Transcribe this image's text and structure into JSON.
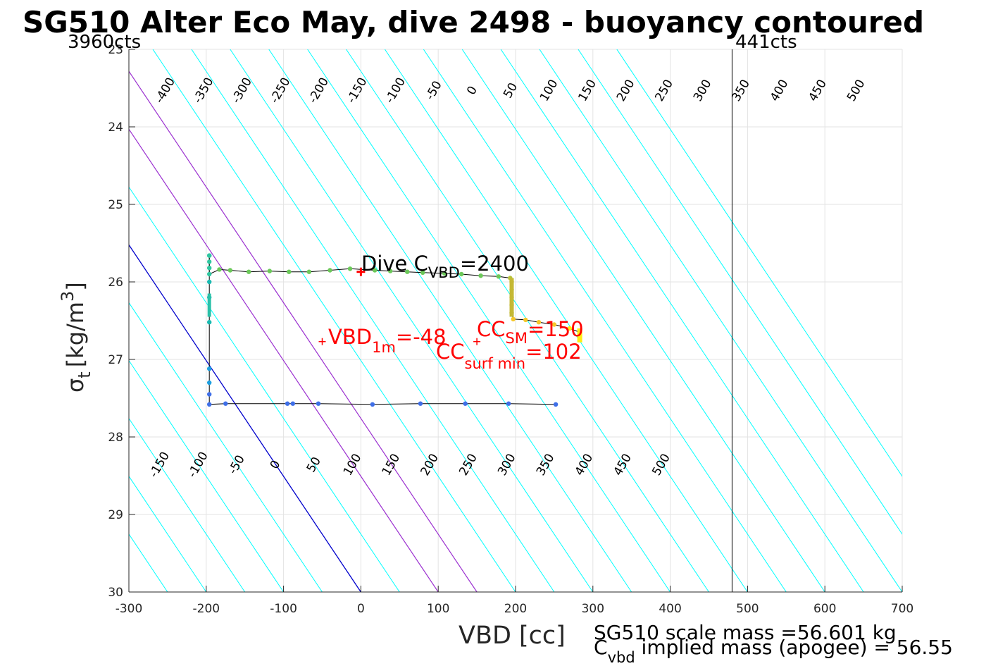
{
  "chart_data": {
    "type": "scatter",
    "title": "SG510 Alter Eco May, dive 2498 - buoyancy contoured",
    "xlabel": "VBD [cc]",
    "ylabel": "σ",
    "ylabel_sub": "t",
    "ylabel_unit": "[kg/m",
    "ylabel_sup": "3",
    "ylabel_close": "]",
    "xlim": [
      -300,
      700
    ],
    "ylim": [
      23,
      30
    ],
    "y_reversed": true,
    "grid": true,
    "x_ticks": [
      -300,
      -200,
      -100,
      0,
      100,
      200,
      300,
      400,
      500,
      600,
      700
    ],
    "y_ticks": [
      23,
      24,
      25,
      26,
      27,
      28,
      29,
      30
    ],
    "count_left": "3960cts",
    "count_right": "441cts",
    "count_right_x": 480,
    "contour_slope_cc_per_sigma": 67,
    "contour_reference_sigma": 30,
    "contours": [
      -400,
      -350,
      -300,
      -250,
      -200,
      -150,
      -100,
      -50,
      0,
      50,
      100,
      150,
      200,
      250,
      300,
      350,
      400,
      450,
      500,
      550,
      600,
      650,
      700,
      750,
      800
    ],
    "top_labels": [
      "-400",
      "-350",
      "-300",
      "-250",
      "-200",
      "-150",
      "-100",
      "-50",
      "0",
      "50",
      "100",
      "150",
      "200",
      "250",
      "300",
      "350",
      "400",
      "450",
      "500"
    ],
    "bottom_labels": [
      "-150",
      "-100",
      "-50",
      "0",
      "50",
      "100",
      "150",
      "200",
      "250",
      "300",
      "350",
      "400",
      "450",
      "500"
    ],
    "colors": {
      "contour": "#00ffff",
      "zero_line": "#0000cc",
      "special_lines": "#9b30d0",
      "annotation": "#ff0000",
      "path": "#000000"
    },
    "special_lines": [
      100,
      150
    ],
    "path": [
      [
        -196,
        25.66
      ],
      [
        -196,
        25.74
      ],
      [
        -196,
        25.82
      ],
      [
        -196,
        25.9
      ],
      [
        -183,
        25.84
      ],
      [
        -169,
        25.85
      ],
      [
        -145,
        25.87
      ],
      [
        -118,
        25.86
      ],
      [
        -93,
        25.87
      ],
      [
        -67,
        25.87
      ],
      [
        -40,
        25.85
      ],
      [
        -14,
        25.83
      ],
      [
        18,
        25.85
      ],
      [
        38,
        25.86
      ],
      [
        60,
        25.87
      ],
      [
        80,
        25.88
      ],
      [
        108,
        25.89
      ],
      [
        130,
        25.9
      ],
      [
        155,
        25.92
      ],
      [
        178,
        25.93
      ],
      [
        193,
        25.95
      ],
      [
        195,
        26.0
      ],
      [
        195,
        26.1
      ],
      [
        195,
        26.2
      ],
      [
        195,
        26.3
      ],
      [
        195,
        26.4
      ],
      [
        197,
        26.48
      ],
      [
        213,
        26.49
      ],
      [
        230,
        26.52
      ],
      [
        250,
        26.55
      ],
      [
        270,
        26.6
      ],
      [
        283,
        26.65
      ],
      [
        283,
        26.75
      ]
    ],
    "descent": [
      [
        -196,
        25.66
      ],
      [
        -196,
        26.0
      ],
      [
        -196,
        26.2
      ],
      [
        -196,
        26.52
      ],
      [
        -196,
        27.12
      ],
      [
        -196,
        27.3
      ],
      [
        -196,
        27.45
      ],
      [
        -196,
        27.58
      ],
      [
        -175,
        27.57
      ],
      [
        -95,
        27.57
      ],
      [
        -88,
        27.57
      ],
      [
        -55,
        27.57
      ],
      [
        15,
        27.58
      ],
      [
        77,
        27.57
      ],
      [
        135,
        27.57
      ],
      [
        191,
        27.57
      ],
      [
        252,
        27.58
      ]
    ],
    "annotations": {
      "dive_c_vbd": {
        "text": "Dive C",
        "sub": "VBD",
        "tail": "=2400"
      },
      "vbd_1m": {
        "text": "VBD",
        "sub": "1m",
        "tail": "=-48"
      },
      "cc_sm": {
        "text": "CC",
        "sub": "SM",
        "tail": "=150"
      },
      "cc_surf_min": {
        "text": "CC",
        "sub": "surf min",
        "tail": "=102"
      }
    },
    "markers": [
      {
        "x": 0,
        "y": 25.87,
        "color": "#ff0000"
      },
      {
        "x": -50,
        "y": 26.77,
        "color": "#ff0000"
      },
      {
        "x": 150,
        "y": 26.77,
        "color": "#ff0000"
      }
    ]
  },
  "footer": {
    "scale_mass": "SG510 scale mass =56.601 kg",
    "implied_pre": "C",
    "implied_sub": "vbd",
    "implied_tail": " implied mass (apogee) = 56.55"
  }
}
